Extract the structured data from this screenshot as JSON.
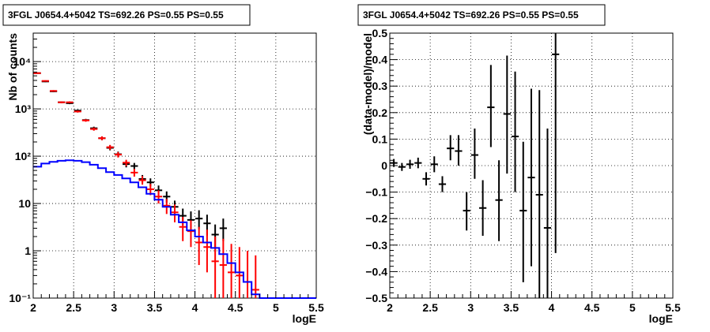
{
  "chart_data": [
    {
      "type": "scatter",
      "title": "3FGL J0654.4+5042 TS=692.26 PS=0.55 PS=0.55",
      "xlabel": "logE",
      "ylabel": "Nb of counts",
      "xlim": [
        2,
        5.5
      ],
      "ylim": [
        0.1,
        40000
      ],
      "yscale": "log",
      "grid": true,
      "xticks": [
        2,
        2.5,
        3,
        3.5,
        4,
        4.5,
        5,
        5.5
      ],
      "xtick_labels": [
        "2",
        "2.5",
        "3",
        "3.5",
        "4",
        "4.5",
        "5",
        "5.5"
      ],
      "yticks": [
        0.1,
        1,
        10,
        100,
        1000,
        10000
      ],
      "ytick_labels": [
        "10⁻¹",
        "1",
        "10",
        "10²",
        "10³",
        "10⁴"
      ],
      "series": [
        {
          "color": "#000000",
          "kind": "points",
          "points": [
            {
              "x": 2.05,
              "y": 5700,
              "lo": 5550,
              "hi": 5850
            },
            {
              "x": 2.15,
              "y": 3800,
              "lo": 3680,
              "hi": 3920
            },
            {
              "x": 2.25,
              "y": 2350,
              "lo": 2260,
              "hi": 2440
            },
            {
              "x": 2.35,
              "y": 1380,
              "lo": 1320,
              "hi": 1440
            },
            {
              "x": 2.45,
              "y": 1320,
              "lo": 1260,
              "hi": 1380
            },
            {
              "x": 2.55,
              "y": 920,
              "lo": 870,
              "hi": 970
            },
            {
              "x": 2.65,
              "y": 580,
              "lo": 545,
              "hi": 615
            },
            {
              "x": 2.75,
              "y": 390,
              "lo": 360,
              "hi": 420
            },
            {
              "x": 2.85,
              "y": 240,
              "lo": 218,
              "hi": 262
            },
            {
              "x": 2.95,
              "y": 150,
              "lo": 133,
              "hi": 168
            },
            {
              "x": 3.05,
              "y": 110,
              "lo": 96,
              "hi": 125
            },
            {
              "x": 3.15,
              "y": 68,
              "lo": 58,
              "hi": 79
            },
            {
              "x": 3.25,
              "y": 62,
              "lo": 53,
              "hi": 72
            },
            {
              "x": 3.35,
              "y": 33,
              "lo": 27,
              "hi": 40
            },
            {
              "x": 3.45,
              "y": 28,
              "lo": 23,
              "hi": 34
            },
            {
              "x": 3.55,
              "y": 19,
              "lo": 15,
              "hi": 24
            },
            {
              "x": 3.65,
              "y": 14,
              "lo": 10.5,
              "hi": 18
            },
            {
              "x": 3.75,
              "y": 8.5,
              "lo": 6,
              "hi": 11.5
            },
            {
              "x": 3.85,
              "y": 5.5,
              "lo": 3.5,
              "hi": 7.8
            },
            {
              "x": 3.95,
              "y": 4.5,
              "lo": 2.7,
              "hi": 6.8
            },
            {
              "x": 4.05,
              "y": 4.8,
              "lo": 2.9,
              "hi": 7.2
            },
            {
              "x": 4.15,
              "y": 3.8,
              "lo": 2.1,
              "hi": 5.8
            },
            {
              "x": 4.25,
              "y": 2.2,
              "lo": 1.1,
              "hi": 3.6
            },
            {
              "x": 4.35,
              "y": 3.0,
              "lo": 1.6,
              "hi": 4.8
            }
          ]
        },
        {
          "color": "#ff0000",
          "kind": "points",
          "points": [
            {
              "x": 2.05,
              "y": 5700,
              "lo": 5550,
              "hi": 5850
            },
            {
              "x": 2.15,
              "y": 3900,
              "lo": 3780,
              "hi": 4020
            },
            {
              "x": 2.25,
              "y": 2400,
              "lo": 2310,
              "hi": 2490
            },
            {
              "x": 2.35,
              "y": 1380,
              "lo": 1320,
              "hi": 1440
            },
            {
              "x": 2.45,
              "y": 1380,
              "lo": 1320,
              "hi": 1440
            },
            {
              "x": 2.55,
              "y": 880,
              "lo": 835,
              "hi": 925
            },
            {
              "x": 2.65,
              "y": 570,
              "lo": 535,
              "hi": 605
            },
            {
              "x": 2.75,
              "y": 375,
              "lo": 346,
              "hi": 404
            },
            {
              "x": 2.85,
              "y": 240,
              "lo": 217,
              "hi": 263
            },
            {
              "x": 2.95,
              "y": 155,
              "lo": 137,
              "hi": 173
            },
            {
              "x": 3.05,
              "y": 108,
              "lo": 94,
              "hi": 122
            },
            {
              "x": 3.15,
              "y": 73,
              "lo": 62,
              "hi": 84
            },
            {
              "x": 3.25,
              "y": 45,
              "lo": 37,
              "hi": 54
            },
            {
              "x": 3.35,
              "y": 31,
              "lo": 25,
              "hi": 38
            },
            {
              "x": 3.45,
              "y": 20,
              "lo": 15,
              "hi": 26
            },
            {
              "x": 3.55,
              "y": 14,
              "lo": 10,
              "hi": 19
            },
            {
              "x": 3.65,
              "y": 9,
              "lo": 6,
              "hi": 12.5
            },
            {
              "x": 3.75,
              "y": 6.5,
              "lo": 4,
              "hi": 9.5
            },
            {
              "x": 3.85,
              "y": 3.2,
              "lo": 1.6,
              "hi": 5.2
            },
            {
              "x": 3.95,
              "y": 2.6,
              "lo": 1.2,
              "hi": 4.4
            },
            {
              "x": 4.05,
              "y": 1.5,
              "lo": 0.5,
              "hi": 3.2
            },
            {
              "x": 4.15,
              "y": 1.2,
              "lo": 0.35,
              "hi": 2.8
            },
            {
              "x": 4.25,
              "y": 0.6,
              "lo": 0.1,
              "hi": 2.0
            },
            {
              "x": 4.35,
              "y": 0.5,
              "lo": 0.1,
              "hi": 1.8
            },
            {
              "x": 4.45,
              "y": 0.35,
              "lo": 0.1,
              "hi": 1.4
            },
            {
              "x": 4.55,
              "y": 0.3,
              "lo": 0.1,
              "hi": 1.2
            },
            {
              "x": 4.65,
              "y": 0.22,
              "lo": 0.1,
              "hi": 1.0
            },
            {
              "x": 4.75,
              "y": 0.15,
              "lo": 0.1,
              "hi": 0.8
            }
          ]
        },
        {
          "color": "#0000ff",
          "kind": "step",
          "bin_width": 0.1,
          "x": [
            2.05,
            2.15,
            2.25,
            2.35,
            2.45,
            2.55,
            2.65,
            2.75,
            2.85,
            2.95,
            3.05,
            3.15,
            3.25,
            3.35,
            3.45,
            3.55,
            3.65,
            3.75,
            3.85,
            3.95,
            4.05,
            4.15,
            4.25,
            4.35,
            4.45,
            4.55,
            4.65,
            4.75,
            4.85,
            4.95,
            5.05,
            5.15,
            5.25,
            5.35,
            5.45
          ],
          "y": [
            60,
            70,
            76,
            80,
            82,
            80,
            75,
            66,
            56,
            46,
            40,
            34,
            28,
            22,
            16,
            12,
            8.5,
            5.8,
            4.0,
            2.7,
            2.0,
            1.5,
            1.15,
            0.85,
            0.55,
            0.35,
            0.22,
            0.12,
            0.1,
            0.1,
            0.1,
            0.1,
            0.1,
            0.1,
            0.1
          ]
        }
      ]
    },
    {
      "type": "scatter",
      "title": "3FGL J0654.4+5042 TS=692.26 PS=0.55 PS=0.55",
      "xlabel": "logE",
      "ylabel": "(data-model)/model",
      "xlim": [
        2,
        5.5
      ],
      "ylim": [
        -0.5,
        0.5
      ],
      "grid": true,
      "xticks": [
        2,
        2.5,
        3,
        3.5,
        4,
        4.5,
        5,
        5.5
      ],
      "xtick_labels": [
        "2",
        "2.5",
        "3",
        "3.5",
        "4",
        "4.5",
        "5",
        "5.5"
      ],
      "yticks": [
        -0.5,
        -0.4,
        -0.3,
        -0.2,
        -0.1,
        0,
        0.1,
        0.2,
        0.3,
        0.4,
        0.5
      ],
      "ytick_labels": [
        "−0.5",
        "−0.4",
        "−0.3",
        "−0.2",
        "−0.1",
        "0",
        "0.1",
        "0.2",
        "0.3",
        "0.4",
        "0.5"
      ],
      "series": [
        {
          "color": "#000000",
          "kind": "points",
          "points": [
            {
              "x": 2.05,
              "y": 0.01,
              "lo": -0.005,
              "hi": 0.025
            },
            {
              "x": 2.15,
              "y": -0.005,
              "lo": -0.02,
              "hi": 0.01
            },
            {
              "x": 2.25,
              "y": 0.005,
              "lo": -0.012,
              "hi": 0.022
            },
            {
              "x": 2.35,
              "y": 0.01,
              "lo": -0.01,
              "hi": 0.03
            },
            {
              "x": 2.45,
              "y": -0.05,
              "lo": -0.075,
              "hi": -0.025
            },
            {
              "x": 2.55,
              "y": 0.005,
              "lo": -0.025,
              "hi": 0.035
            },
            {
              "x": 2.65,
              "y": -0.07,
              "lo": -0.1,
              "hi": -0.04
            },
            {
              "x": 2.75,
              "y": 0.065,
              "lo": 0.02,
              "hi": 0.115
            },
            {
              "x": 2.85,
              "y": 0.055,
              "lo": 0.0,
              "hi": 0.115
            },
            {
              "x": 2.95,
              "y": -0.17,
              "lo": -0.245,
              "hi": -0.1
            },
            {
              "x": 3.05,
              "y": 0.04,
              "lo": -0.05,
              "hi": 0.14
            },
            {
              "x": 3.15,
              "y": -0.16,
              "lo": -0.265,
              "hi": -0.055
            },
            {
              "x": 3.25,
              "y": 0.22,
              "lo": 0.07,
              "hi": 0.38
            },
            {
              "x": 3.35,
              "y": -0.13,
              "lo": -0.285,
              "hi": 0.02
            },
            {
              "x": 3.45,
              "y": 0.195,
              "lo": -0.03,
              "hi": 0.415
            },
            {
              "x": 3.55,
              "y": 0.11,
              "lo": -0.1,
              "hi": 0.355
            },
            {
              "x": 3.65,
              "y": -0.17,
              "lo": -0.44,
              "hi": 0.09
            },
            {
              "x": 3.75,
              "y": -0.045,
              "lo": -0.38,
              "hi": 0.29
            },
            {
              "x": 3.85,
              "y": -0.11,
              "lo": -0.5,
              "hi": 0.285
            },
            {
              "x": 3.95,
              "y": -0.235,
              "lo": -0.5,
              "hi": 0.14
            },
            {
              "x": 4.05,
              "y": 0.42,
              "lo": -0.33,
              "hi": 0.5
            }
          ]
        }
      ]
    }
  ]
}
